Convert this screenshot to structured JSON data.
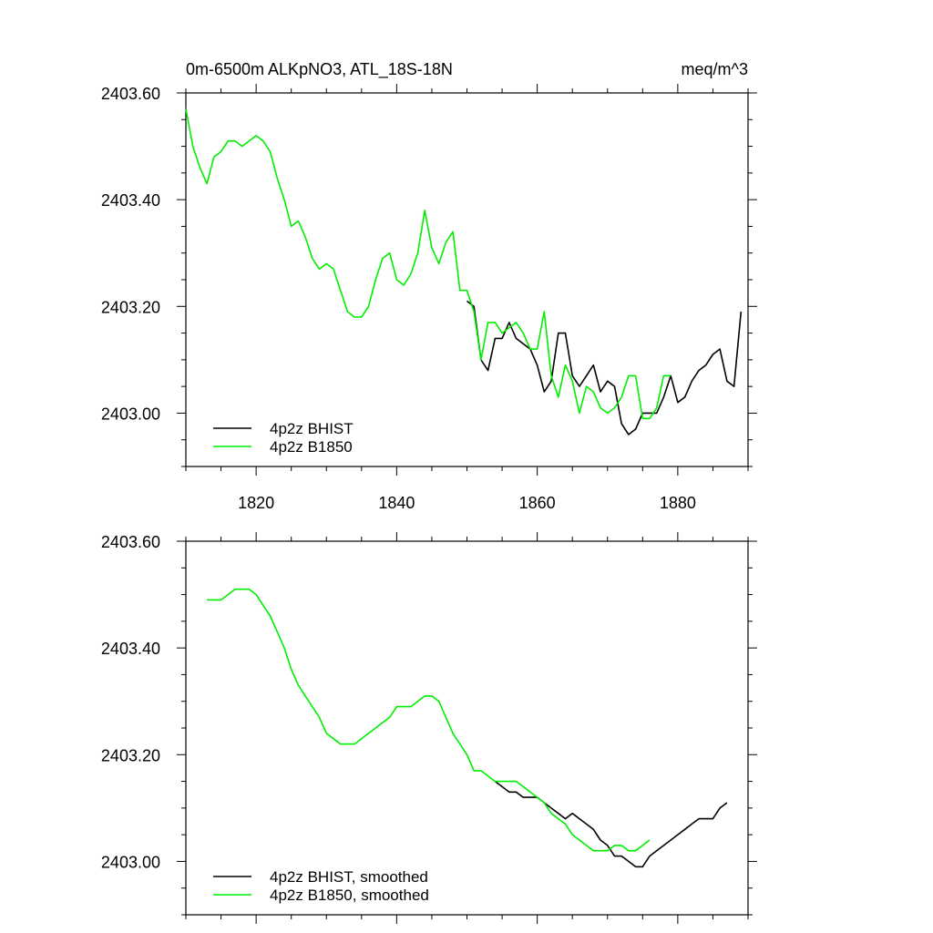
{
  "title_left": "0m-6500m ALKpNO3, ATL_18S-18N",
  "title_right": "meq/m^3",
  "colors": {
    "bhist": "#000000",
    "b1850": "#00ee00",
    "axis": "#000000"
  },
  "chart_data": [
    {
      "type": "line",
      "title": "0m-6500m ALKpNO3, ATL_18S-18N",
      "units": "meq/m^3",
      "xlim": [
        1810,
        1890
      ],
      "ylim": [
        2402.9,
        2403.6
      ],
      "xticks": [
        1820,
        1840,
        1860,
        1880
      ],
      "xtick_labels": [
        "1820",
        "1840",
        "1860",
        "1880"
      ],
      "yticks": [
        2403.0,
        2403.2,
        2403.4,
        2403.6
      ],
      "ytick_labels": [
        "2403.00",
        "2403.20",
        "2403.40",
        "2403.60"
      ],
      "series": [
        {
          "name": "4p2z BHIST",
          "color": "#000000",
          "x": [
            1850,
            1851,
            1852,
            1853,
            1854,
            1855,
            1856,
            1857,
            1858,
            1859,
            1860,
            1861,
            1862,
            1863,
            1864,
            1865,
            1866,
            1867,
            1868,
            1869,
            1870,
            1871,
            1872,
            1873,
            1874,
            1875,
            1876,
            1877,
            1878,
            1879,
            1880,
            1881,
            1882,
            1883,
            1884,
            1885,
            1886,
            1887,
            1888,
            1889
          ],
          "y": [
            2403.21,
            2403.2,
            2403.1,
            2403.08,
            2403.14,
            2403.14,
            2403.17,
            2403.14,
            2403.13,
            2403.12,
            2403.09,
            2403.04,
            2403.06,
            2403.15,
            2403.15,
            2403.07,
            2403.05,
            2403.07,
            2403.09,
            2403.04,
            2403.06,
            2403.05,
            2402.98,
            2402.96,
            2402.97,
            2403.0,
            2403.0,
            2403.0,
            2403.03,
            2403.07,
            2403.02,
            2403.03,
            2403.06,
            2403.08,
            2403.09,
            2403.11,
            2403.12,
            2403.06,
            2403.05,
            2403.19
          ]
        },
        {
          "name": "4p2z B1850",
          "color": "#00ee00",
          "x": [
            1810,
            1811,
            1812,
            1813,
            1814,
            1815,
            1816,
            1817,
            1818,
            1819,
            1820,
            1821,
            1822,
            1823,
            1824,
            1825,
            1826,
            1827,
            1828,
            1829,
            1830,
            1831,
            1832,
            1833,
            1834,
            1835,
            1836,
            1837,
            1838,
            1839,
            1840,
            1841,
            1842,
            1843,
            1844,
            1845,
            1846,
            1847,
            1848,
            1849,
            1850,
            1851,
            1852,
            1853,
            1854,
            1855,
            1856,
            1857,
            1858,
            1859,
            1860,
            1861,
            1862,
            1863,
            1864,
            1865,
            1866,
            1867,
            1868,
            1869,
            1870,
            1871,
            1872,
            1873,
            1874,
            1875,
            1876,
            1877,
            1878,
            1879
          ],
          "y": [
            2403.57,
            2403.5,
            2403.46,
            2403.43,
            2403.48,
            2403.49,
            2403.51,
            2403.51,
            2403.5,
            2403.51,
            2403.52,
            2403.51,
            2403.49,
            2403.44,
            2403.4,
            2403.35,
            2403.36,
            2403.33,
            2403.29,
            2403.27,
            2403.28,
            2403.27,
            2403.23,
            2403.19,
            2403.18,
            2403.18,
            2403.2,
            2403.25,
            2403.29,
            2403.3,
            2403.25,
            2403.24,
            2403.26,
            2403.3,
            2403.38,
            2403.31,
            2403.28,
            2403.32,
            2403.34,
            2403.23,
            2403.23,
            2403.19,
            2403.1,
            2403.17,
            2403.17,
            2403.15,
            2403.16,
            2403.17,
            2403.15,
            2403.12,
            2403.12,
            2403.19,
            2403.07,
            2403.03,
            2403.09,
            2403.06,
            2403.0,
            2403.05,
            2403.04,
            2403.01,
            2403.0,
            2403.01,
            2403.03,
            2403.07,
            2403.07,
            2402.99,
            2402.99,
            2403.01,
            2403.07,
            2403.07
          ]
        }
      ]
    },
    {
      "type": "line",
      "title": "",
      "xlim": [
        1810,
        1890
      ],
      "ylim": [
        2402.9,
        2403.6
      ],
      "xticks": [
        1820,
        1840,
        1860,
        1880
      ],
      "yticks": [
        2403.0,
        2403.2,
        2403.4,
        2403.6
      ],
      "ytick_labels": [
        "2403.00",
        "2403.20",
        "2403.40",
        "2403.60"
      ],
      "series": [
        {
          "name": "4p2z BHIST, smoothed",
          "color": "#000000",
          "x": [
            1854,
            1855,
            1856,
            1857,
            1858,
            1859,
            1860,
            1861,
            1862,
            1863,
            1864,
            1865,
            1866,
            1867,
            1868,
            1869,
            1870,
            1871,
            1872,
            1873,
            1874,
            1875,
            1876,
            1877,
            1878,
            1879,
            1880,
            1881,
            1882,
            1883,
            1884,
            1885,
            1886,
            1887
          ],
          "y": [
            2403.15,
            2403.14,
            2403.13,
            2403.13,
            2403.12,
            2403.12,
            2403.12,
            2403.11,
            2403.1,
            2403.09,
            2403.08,
            2403.09,
            2403.08,
            2403.07,
            2403.06,
            2403.04,
            2403.03,
            2403.01,
            2403.01,
            2403.0,
            2402.99,
            2402.99,
            2403.01,
            2403.02,
            2403.03,
            2403.04,
            2403.05,
            2403.06,
            2403.07,
            2403.08,
            2403.08,
            2403.08,
            2403.1,
            2403.11
          ]
        },
        {
          "name": "4p2z B1850, smoothed",
          "color": "#00ee00",
          "x": [
            1813,
            1814,
            1815,
            1816,
            1817,
            1818,
            1819,
            1820,
            1821,
            1822,
            1823,
            1824,
            1825,
            1826,
            1827,
            1828,
            1829,
            1830,
            1831,
            1832,
            1833,
            1834,
            1835,
            1836,
            1837,
            1838,
            1839,
            1840,
            1841,
            1842,
            1843,
            1844,
            1845,
            1846,
            1847,
            1848,
            1849,
            1850,
            1851,
            1852,
            1853,
            1854,
            1855,
            1856,
            1857,
            1858,
            1859,
            1860,
            1861,
            1862,
            1863,
            1864,
            1865,
            1866,
            1867,
            1868,
            1869,
            1870,
            1871,
            1872,
            1873,
            1874,
            1875,
            1876
          ],
          "y": [
            2403.49,
            2403.49,
            2403.49,
            2403.5,
            2403.51,
            2403.51,
            2403.51,
            2403.5,
            2403.48,
            2403.46,
            2403.43,
            2403.4,
            2403.36,
            2403.33,
            2403.31,
            2403.29,
            2403.27,
            2403.24,
            2403.23,
            2403.22,
            2403.22,
            2403.22,
            2403.23,
            2403.24,
            2403.25,
            2403.26,
            2403.27,
            2403.29,
            2403.29,
            2403.29,
            2403.3,
            2403.31,
            2403.31,
            2403.3,
            2403.27,
            2403.24,
            2403.22,
            2403.2,
            2403.17,
            2403.17,
            2403.16,
            2403.15,
            2403.15,
            2403.15,
            2403.15,
            2403.14,
            2403.13,
            2403.12,
            2403.11,
            2403.09,
            2403.08,
            2403.07,
            2403.05,
            2403.04,
            2403.03,
            2403.02,
            2403.02,
            2403.02,
            2403.03,
            2403.03,
            2403.02,
            2403.02,
            2403.03,
            2403.04
          ]
        }
      ]
    }
  ]
}
